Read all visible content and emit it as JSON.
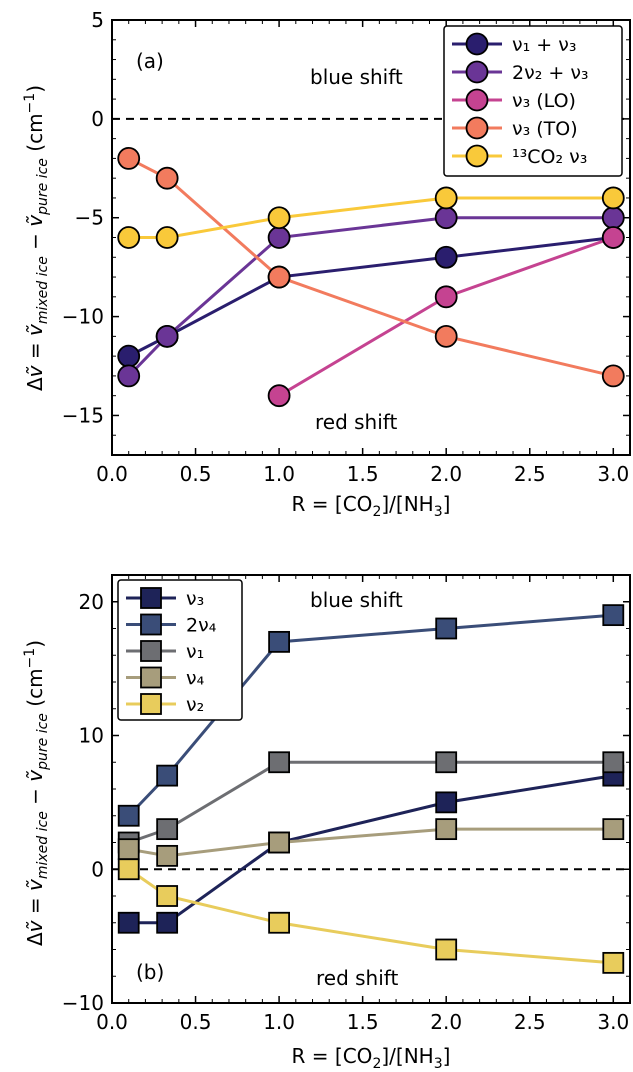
{
  "chart_data": [
    {
      "type": "line",
      "panel_label": "(a)",
      "x": [
        0.1,
        0.33,
        1.0,
        2.0,
        3.0
      ],
      "xlim": [
        0,
        3.1
      ],
      "ylim": [
        -17,
        5
      ],
      "xticks": [
        "0.0",
        "0.5",
        "1.0",
        "1.5",
        "2.0",
        "2.5",
        "3.0"
      ],
      "yticks": [
        "5",
        "0",
        "−5",
        "−10",
        "−15"
      ],
      "xlabel": "R = [CO₂]/[NH₃]",
      "ylabel": "Δṽ = ṽ(mixed ice) − ṽ(pure ice) (cm⁻¹)",
      "marker": "circle",
      "legend_position": "top-right",
      "zero_line": "dashed",
      "annotations": [
        "blue shift",
        "red shift"
      ],
      "series": [
        {
          "name": "ν₁ + ν₃",
          "color": "#2a1e6e",
          "values": [
            -12,
            -11,
            -8,
            -7,
            -6
          ]
        },
        {
          "name": "2ν₂ + ν₃",
          "color": "#6a3596",
          "values": [
            -13,
            -11,
            -6,
            -5,
            -5
          ]
        },
        {
          "name": "ν₃ (LO)",
          "color": "#c54391",
          "values": [
            null,
            null,
            -14,
            -9,
            -6
          ]
        },
        {
          "name": "ν₃ (TO)",
          "color": "#f27b5e",
          "values": [
            -2,
            -3,
            -8,
            -11,
            -13
          ]
        },
        {
          "name": "¹³CO₂ ν₃",
          "color": "#f9c93a",
          "values": [
            -6,
            -6,
            -5,
            -4,
            -4
          ]
        }
      ]
    },
    {
      "type": "line",
      "panel_label": "(b)",
      "x": [
        0.1,
        0.33,
        1.0,
        2.0,
        3.0
      ],
      "xlim": [
        0,
        3.1
      ],
      "ylim": [
        -10,
        22
      ],
      "xticks": [
        "0.0",
        "0.5",
        "1.0",
        "1.5",
        "2.0",
        "2.5",
        "3.0"
      ],
      "yticks": [
        "20",
        "10",
        "0",
        "−10"
      ],
      "xlabel": "R = [CO₂]/[NH₃]",
      "ylabel": "Δṽ = ṽ(mixed ice) − ṽ(pure ice) (cm⁻¹)",
      "marker": "square",
      "legend_position": "top-left",
      "zero_line": "dashed",
      "annotations": [
        "blue shift",
        "red shift"
      ],
      "series": [
        {
          "name": "ν₃",
          "color": "#1e2358",
          "values": [
            -4,
            -4,
            2,
            5,
            7
          ]
        },
        {
          "name": "2ν₄",
          "color": "#3a4d78",
          "values": [
            4,
            7,
            17,
            18,
            19
          ]
        },
        {
          "name": "ν₁",
          "color": "#6d6e72",
          "values": [
            2,
            3,
            8,
            8,
            8
          ]
        },
        {
          "name": "ν₄",
          "color": "#a79d7c",
          "values": [
            1.5,
            1,
            2,
            3,
            3
          ]
        },
        {
          "name": "ν₂",
          "color": "#e8cc5c",
          "values": [
            0,
            -2,
            -4,
            -6,
            -7
          ]
        }
      ]
    }
  ]
}
